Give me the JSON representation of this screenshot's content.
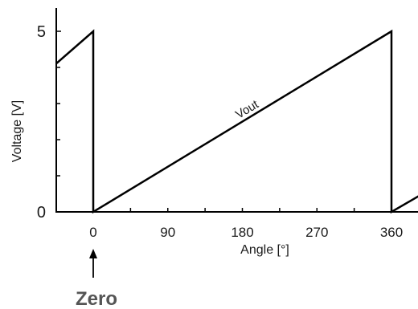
{
  "chart_data": {
    "type": "line",
    "title": "",
    "xlabel": "Angle [°]",
    "ylabel": "Voltage [V]",
    "xlim": [
      -45,
      405
    ],
    "ylim": [
      0,
      5
    ],
    "x_ticks": [
      0,
      90,
      180,
      270,
      360
    ],
    "y_ticks": [
      0,
      5
    ],
    "grid": false,
    "series": [
      {
        "name": "Vout",
        "x": [
          -45,
          0,
          0,
          360,
          360,
          405
        ],
        "y": [
          4.1,
          5,
          0,
          5,
          0,
          0.6
        ]
      }
    ],
    "annotations": [
      {
        "text": "Zero",
        "x": 0,
        "arrow": "up"
      }
    ]
  },
  "colors": {
    "line": "#000000",
    "axis": "#000000",
    "zero_text": "#555555"
  }
}
